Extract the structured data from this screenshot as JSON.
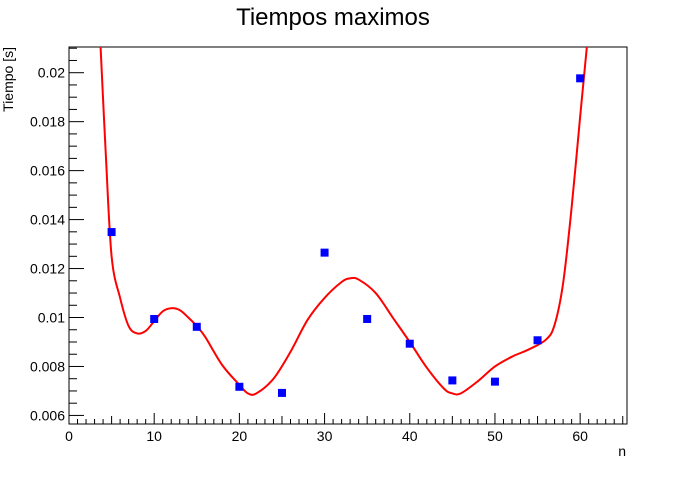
{
  "chart_data": {
    "type": "scatter",
    "title": "Tiempos maximos",
    "xlabel": "n",
    "ylabel": "Tiempo [s]",
    "xlim": [
      0,
      65.5
    ],
    "ylim": [
      0.00565,
      0.02105
    ],
    "x_ticks": [
      0,
      10,
      20,
      30,
      40,
      50,
      60
    ],
    "x_tick_labels": [
      "0",
      "10",
      "20",
      "30",
      "40",
      "50",
      "60"
    ],
    "y_ticks": [
      0.006,
      0.008,
      0.01,
      0.012,
      0.014,
      0.016,
      0.018,
      0.02
    ],
    "y_tick_labels": [
      "0.006",
      "0.008",
      "0.01",
      "0.012",
      "0.014",
      "0.016",
      "0.018",
      "0.02"
    ],
    "grid": false,
    "colors": {
      "markers": "#0000ff",
      "fit": "#ff0000",
      "frame": "#000000"
    },
    "series": [
      {
        "type": "scatter",
        "x": [
          5,
          10,
          15,
          20,
          25,
          30,
          35,
          40,
          45,
          50,
          55,
          60
        ],
        "y": [
          0.01349,
          0.00994,
          0.00962,
          0.00717,
          0.00692,
          0.01265,
          0.00994,
          0.00893,
          0.00743,
          0.00738,
          0.00907,
          0.01977
        ]
      },
      {
        "type": "line",
        "x": [
          3.7,
          4.3,
          5.0,
          6.0,
          7.0,
          8.0,
          9.0,
          10.0,
          11.0,
          12.0,
          13.0,
          14.0,
          15.0,
          16.0,
          18.0,
          20.0,
          21.0,
          22.0,
          24.0,
          26.0,
          28.0,
          30.0,
          32.0,
          33.0,
          34.0,
          36.0,
          38.0,
          40.0,
          42.0,
          44.0,
          45.0,
          46.0,
          48.0,
          50.0,
          52.0,
          54.0,
          56.0,
          57.0,
          58.0,
          59.0,
          60.0,
          60.8
        ],
        "y": [
          0.0211,
          0.0168,
          0.0125,
          0.0108,
          0.00965,
          0.00935,
          0.00945,
          0.00985,
          0.01025,
          0.01038,
          0.0103,
          0.01,
          0.00965,
          0.0092,
          0.00805,
          0.00725,
          0.0069,
          0.0069,
          0.0075,
          0.0086,
          0.0099,
          0.0108,
          0.01145,
          0.0116,
          0.01155,
          0.011,
          0.01,
          0.009,
          0.00795,
          0.0071,
          0.0069,
          0.0069,
          0.0074,
          0.008,
          0.0084,
          0.0087,
          0.0091,
          0.0097,
          0.0114,
          0.0145,
          0.0182,
          0.0211
        ]
      }
    ]
  }
}
